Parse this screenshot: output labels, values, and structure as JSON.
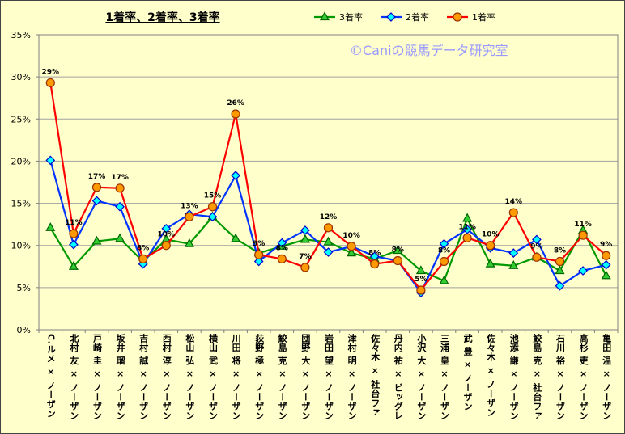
{
  "watermark": "©Caniの競馬データ研究室",
  "chart_data": {
    "type": "line",
    "title": "1着率、2着率、3着率",
    "categories": [
      "C.ルメ × ノーザン",
      "北村 友 × ノーザン",
      "戸崎 圭 × ノーザン",
      "坂井 瑠 × ノーザン",
      "吉村 誠 × ノーザン",
      "西村 淳 × ノーザン",
      "松山 弘 × ノーザン",
      "横山 武 × ノーザン",
      "川田 将 × ノーザン",
      "荻野 極 × ノーザン",
      "鮫島 克 × ノーザン",
      "団野 大 × ノーザン",
      "岩田 望 × ノーザン",
      "津村 明 × ノーザン",
      "佐々木 × 社台ファ",
      "丹内 祐 × ビッグレ",
      "小沢 大 × ノーザン",
      "三浦 皇 × ノーザン",
      "武 豊 × ノーザン",
      "佐々木 × ノーザン",
      "池添 謙 × ノーザン",
      "鮫島 克 × 社台ファ",
      "石川 裕 × ノーザン",
      "高杉 吏 × ノーザン",
      "亀田 温 × ノーザン"
    ],
    "ylim": [
      0,
      35
    ],
    "y_ticks": [
      0,
      5,
      10,
      15,
      20,
      25,
      30,
      35
    ],
    "y_tick_labels": [
      "0%",
      "5%",
      "10%",
      "15%",
      "20%",
      "25%",
      "30%",
      "35%"
    ],
    "grid": true,
    "legend": "top",
    "background": "#ffffcc",
    "series": [
      {
        "name": "3着率",
        "marker": "triangle",
        "color": "#009900",
        "marker_fill": "#33cc33",
        "marker_stroke": "#006600",
        "values": [
          12.1,
          7.5,
          10.5,
          10.8,
          8.1,
          10.7,
          10.2,
          13.4,
          10.8,
          9.1,
          9.9,
          10.7,
          10.4,
          9.1,
          8.4,
          9.4,
          7.0,
          5.8,
          13.2,
          7.8,
          7.6,
          8.6,
          7.0,
          11.8,
          6.4
        ]
      },
      {
        "name": "2着率",
        "marker": "diamond",
        "color": "#0033ff",
        "marker_fill": "#00ffff",
        "marker_stroke": "#0000cc",
        "values": [
          20.1,
          10.1,
          15.3,
          14.6,
          7.8,
          12.0,
          13.7,
          13.4,
          18.3,
          8.1,
          10.3,
          11.8,
          9.2,
          9.9,
          8.7,
          8.2,
          4.4,
          10.2,
          11.9,
          9.7,
          9.1,
          10.7,
          5.2,
          7.0,
          7.7
        ]
      },
      {
        "name": "1着率",
        "marker": "circle",
        "color": "#ff0000",
        "marker_fill": "#ff9900",
        "marker_stroke": "#993300",
        "values": [
          29.3,
          11.4,
          16.9,
          16.8,
          8.4,
          10.0,
          13.4,
          14.6,
          25.6,
          8.9,
          8.4,
          7.4,
          12.1,
          9.9,
          7.8,
          8.2,
          4.7,
          8.1,
          10.9,
          10.0,
          13.9,
          8.6,
          8.1,
          11.2,
          8.8
        ],
        "data_labels": [
          "29%",
          "11%",
          "17%",
          "17%",
          "8%",
          "10%",
          "13%",
          "15%",
          "26%",
          "9%",
          "8%",
          "7%",
          "12%",
          "10%",
          "8%",
          "8%",
          "5%",
          "8%",
          "11%",
          "10%",
          "14%",
          "9%",
          "8%",
          "11%",
          "9%"
        ]
      }
    ]
  }
}
